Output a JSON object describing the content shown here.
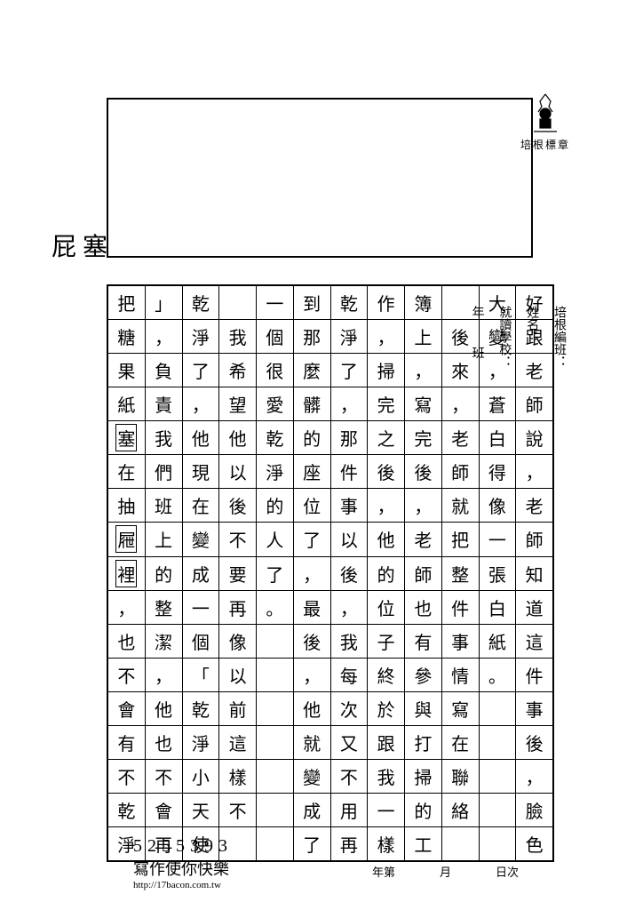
{
  "logo_label": "培根標章",
  "margin_note": "屁 塞",
  "right_info": {
    "line1": "培根編班：",
    "line2": "姓名：",
    "line3": "就讀學校：",
    "line4a": "年",
    "line4b": "班"
  },
  "columns": [
    [
      "好",
      "跟",
      "老",
      "師",
      "說",
      "，",
      "老",
      "師",
      "知",
      "道",
      "這",
      "件",
      "事",
      "後",
      "，",
      "臉",
      "色"
    ],
    [
      "大",
      "變",
      "，",
      "蒼",
      "白",
      "得",
      "像",
      "一",
      "張",
      "白",
      "紙",
      "。",
      "",
      "",
      "",
      "",
      ""
    ],
    [
      "",
      "後",
      "來",
      "，",
      "老",
      "師",
      "就",
      "把",
      "整",
      "件",
      "事",
      "情",
      "寫",
      "在",
      "聯",
      "絡",
      ""
    ],
    [
      "簿",
      "上",
      "，",
      "寫",
      "完",
      "後",
      "，",
      "老",
      "師",
      "也",
      "有",
      "參",
      "與",
      "打",
      "掃",
      "的",
      "工"
    ],
    [
      "作",
      "，",
      "掃",
      "完",
      "之",
      "後",
      "，",
      "他",
      "的",
      "位",
      "子",
      "終",
      "於",
      "跟",
      "我",
      "一",
      "樣"
    ],
    [
      "乾",
      "淨",
      "了",
      "，",
      "那",
      "件",
      "事",
      "以",
      "後",
      "，",
      "我",
      "每",
      "次",
      "又",
      "不",
      "用",
      "再"
    ],
    [
      "到",
      "那",
      "麼",
      "髒",
      "的",
      "座",
      "位",
      "了",
      "，",
      "最",
      "後",
      "，",
      "他",
      "就",
      "變",
      "成",
      "了"
    ],
    [
      "一",
      "個",
      "很",
      "愛",
      "乾",
      "淨",
      "的",
      "人",
      "了",
      "。",
      "",
      "",
      "",
      "",
      "",
      "",
      ""
    ],
    [
      "",
      "我",
      "希",
      "望",
      "他",
      "以",
      "後",
      "不",
      "要",
      "再",
      "像",
      "以",
      "前",
      "這",
      "樣",
      "不",
      ""
    ],
    [
      "乾",
      "淨",
      "了",
      "，",
      "他",
      "現",
      "在",
      "變",
      "成",
      "一",
      "個",
      "「",
      "乾",
      "淨",
      "小",
      "天",
      "使"
    ],
    [
      "」",
      "，",
      "負",
      "責",
      "我",
      "們",
      "班",
      "上",
      "的",
      "整",
      "潔",
      "，",
      "他",
      "也",
      "不",
      "會",
      "再"
    ],
    [
      "把",
      "糖",
      "果",
      "紙",
      "塞",
      "在",
      "抽",
      "屜",
      "裡",
      "，",
      "也",
      "不",
      "會",
      "有",
      "不",
      "乾",
      "淨"
    ]
  ],
  "boxed_cells": [
    {
      "col": 11,
      "row": 4
    },
    {
      "col": 11,
      "row": 7
    },
    {
      "col": 11,
      "row": 8
    }
  ],
  "footer": {
    "num": "5255393",
    "tag": "寫作使你快樂",
    "url": "http://17bacon.com.tw"
  },
  "date_footer": {
    "a": "日次",
    "b": "月",
    "c": "年第"
  },
  "colors": {
    "paper": "#ffffff",
    "ink": "#000000"
  }
}
